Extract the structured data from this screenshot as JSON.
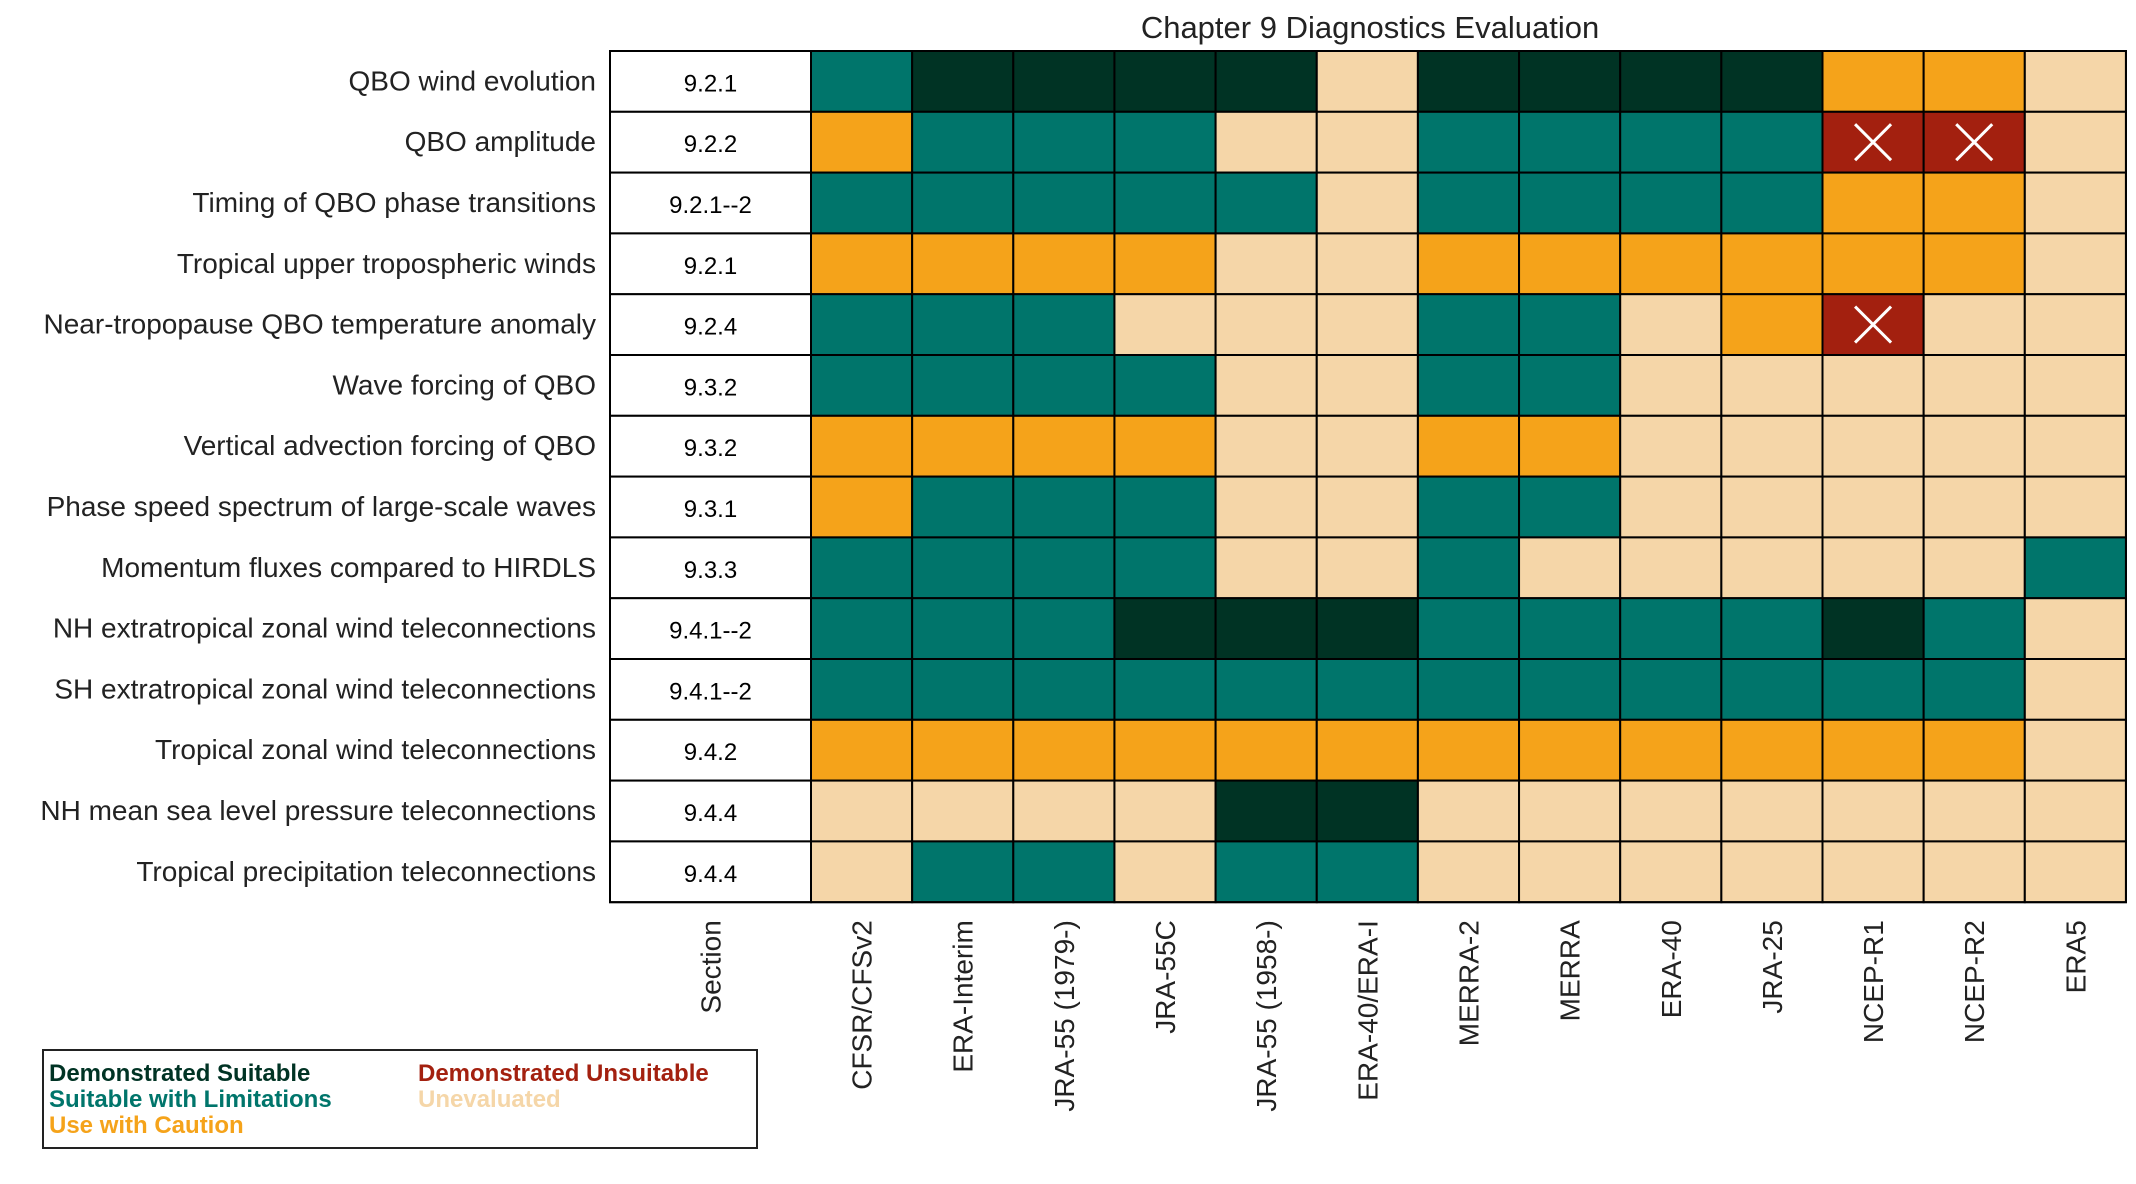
{
  "chart_data": {
    "type": "table",
    "title": "Chapter 9 Diagnostics Evaluation",
    "section_header": "Section",
    "columns": [
      "CFSR/CFSv2",
      "ERA-Interim",
      "JRA-55 (1979-)",
      "JRA-55C",
      "JRA-55 (1958-)",
      "ERA-40/ERA-I",
      "MERRA-2",
      "MERRA",
      "ERA-40",
      "JRA-25",
      "NCEP-R1",
      "NCEP-R2",
      "ERA5"
    ],
    "rows": [
      {
        "label": "QBO wind evolution",
        "section": "9.2.1",
        "ratings": [
          "L",
          "D",
          "D",
          "D",
          "D",
          "E",
          "D",
          "D",
          "D",
          "D",
          "C",
          "C",
          "E"
        ]
      },
      {
        "label": "QBO amplitude",
        "section": "9.2.2",
        "ratings": [
          "C",
          "L",
          "L",
          "L",
          "E",
          "E",
          "L",
          "L",
          "L",
          "L",
          "U",
          "U",
          "E"
        ]
      },
      {
        "label": "Timing of QBO phase transitions",
        "section": "9.2.1--2",
        "ratings": [
          "L",
          "L",
          "L",
          "L",
          "L",
          "E",
          "L",
          "L",
          "L",
          "L",
          "C",
          "C",
          "E"
        ]
      },
      {
        "label": "Tropical upper tropospheric winds",
        "section": "9.2.1",
        "ratings": [
          "C",
          "C",
          "C",
          "C",
          "E",
          "E",
          "C",
          "C",
          "C",
          "C",
          "C",
          "C",
          "E"
        ]
      },
      {
        "label": "Near-tropopause QBO temperature anomaly",
        "section": "9.2.4",
        "ratings": [
          "L",
          "L",
          "L",
          "E",
          "E",
          "E",
          "L",
          "L",
          "E",
          "C",
          "U",
          "E",
          "E"
        ]
      },
      {
        "label": "Wave forcing of QBO",
        "section": "9.3.2",
        "ratings": [
          "L",
          "L",
          "L",
          "L",
          "E",
          "E",
          "L",
          "L",
          "E",
          "E",
          "E",
          "E",
          "E"
        ]
      },
      {
        "label": "Vertical advection forcing of QBO",
        "section": "9.3.2",
        "ratings": [
          "C",
          "C",
          "C",
          "C",
          "E",
          "E",
          "C",
          "C",
          "E",
          "E",
          "E",
          "E",
          "E"
        ]
      },
      {
        "label": "Phase speed spectrum of large-scale waves",
        "section": "9.3.1",
        "ratings": [
          "C",
          "L",
          "L",
          "L",
          "E",
          "E",
          "L",
          "L",
          "E",
          "E",
          "E",
          "E",
          "E"
        ]
      },
      {
        "label": "Momentum fluxes compared to HIRDLS",
        "section": "9.3.3",
        "ratings": [
          "L",
          "L",
          "L",
          "L",
          "E",
          "E",
          "L",
          "E",
          "E",
          "E",
          "E",
          "E",
          "L"
        ]
      },
      {
        "label": "NH extratropical zonal wind teleconnections",
        "section": "9.4.1--2",
        "ratings": [
          "L",
          "L",
          "L",
          "D",
          "D",
          "D",
          "L",
          "L",
          "L",
          "L",
          "D",
          "L",
          "E"
        ]
      },
      {
        "label": "SH extratropical zonal wind teleconnections",
        "section": "9.4.1--2",
        "ratings": [
          "L",
          "L",
          "L",
          "L",
          "L",
          "L",
          "L",
          "L",
          "L",
          "L",
          "L",
          "L",
          "E"
        ]
      },
      {
        "label": "Tropical zonal wind teleconnections",
        "section": "9.4.2",
        "ratings": [
          "C",
          "C",
          "C",
          "C",
          "C",
          "C",
          "C",
          "C",
          "C",
          "C",
          "C",
          "C",
          "E"
        ]
      },
      {
        "label": "NH mean sea level pressure teleconnections",
        "section": "9.4.4",
        "ratings": [
          "E",
          "E",
          "E",
          "E",
          "D",
          "D",
          "E",
          "E",
          "E",
          "E",
          "E",
          "E",
          "E"
        ]
      },
      {
        "label": "Tropical precipitation teleconnections",
        "section": "9.4.4",
        "ratings": [
          "E",
          "L",
          "L",
          "E",
          "L",
          "L",
          "E",
          "E",
          "E",
          "E",
          "E",
          "E",
          "E"
        ]
      }
    ],
    "categories": {
      "D": {
        "name": "Demonstrated Suitable",
        "color": "#003324"
      },
      "L": {
        "name": "Suitable with Limitations",
        "color": "#00756B"
      },
      "C": {
        "name": "Use with Caution",
        "color": "#F5A31A"
      },
      "U": {
        "name": "Demonstrated Unsuitable",
        "color": "#A3200F"
      },
      "E": {
        "name": "Unevaluated",
        "color": "#F5D6A8"
      }
    },
    "legend_order": [
      "D",
      "U",
      "L",
      "E",
      "C"
    ],
    "unsuitable_marker": "X"
  }
}
